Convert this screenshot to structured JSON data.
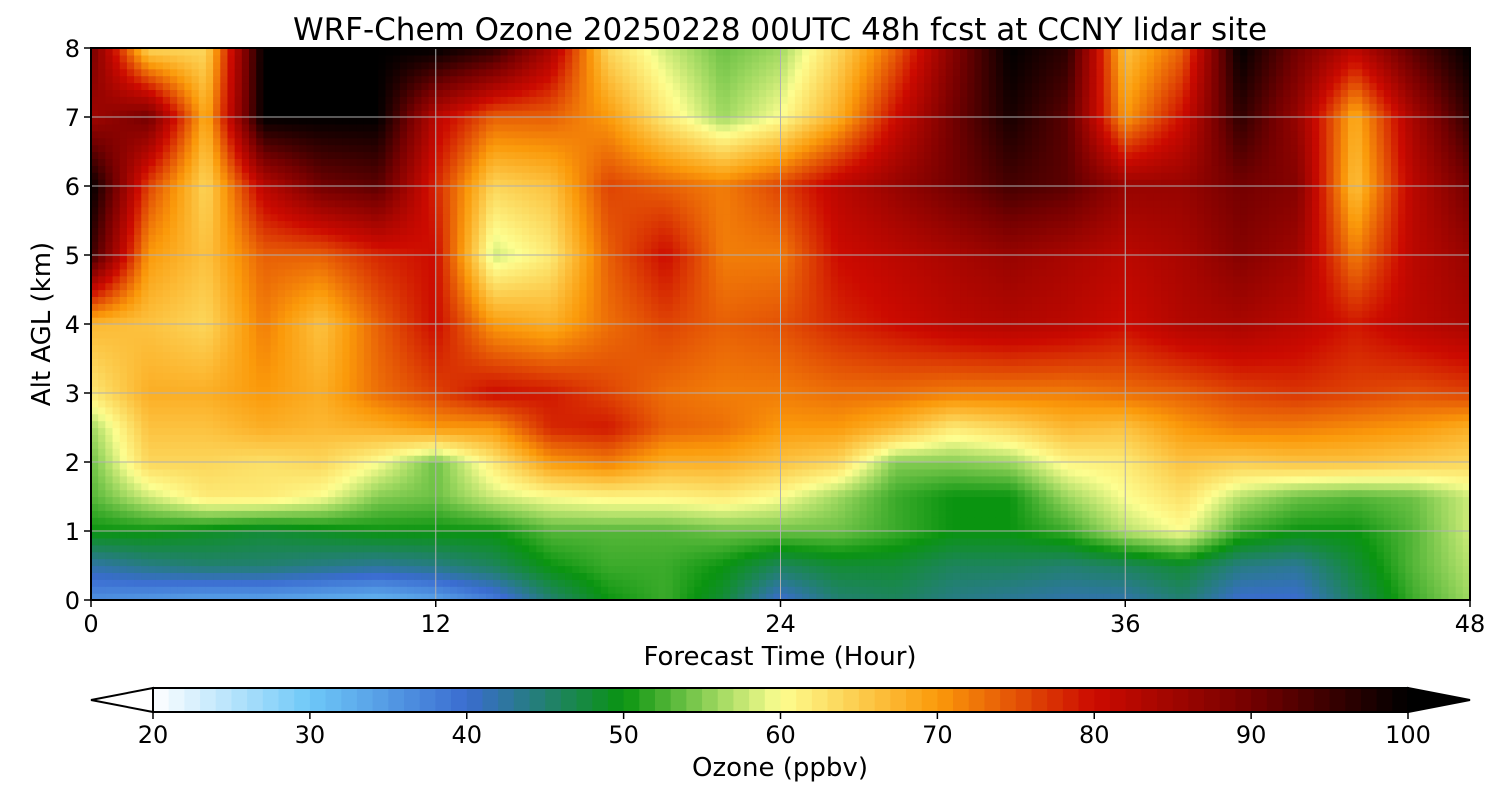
{
  "chart_data": {
    "type": "heatmap",
    "title": "WRF-Chem Ozone  20250228 00UTC 48h fcst at CCNY lidar site",
    "xlabel": "Forecast Time (Hour)",
    "ylabel": "Alt AGL (km)",
    "xlim": [
      0,
      48
    ],
    "ylim": [
      0,
      8
    ],
    "xticks": [
      0,
      12,
      24,
      36,
      48
    ],
    "yticks": [
      0,
      1,
      2,
      3,
      4,
      5,
      6,
      7,
      8
    ],
    "grid": true,
    "x_hours": [
      0,
      2,
      4,
      6,
      8,
      10,
      12,
      14,
      16,
      18,
      20,
      22,
      24,
      26,
      28,
      30,
      32,
      34,
      36,
      38,
      40,
      42,
      44,
      46,
      48
    ],
    "y_km": [
      0,
      0.5,
      1,
      1.5,
      2,
      2.5,
      3,
      4,
      5,
      6,
      7,
      8
    ],
    "z": [
      [
        36,
        35,
        34,
        34,
        33,
        32,
        34,
        38,
        45,
        50,
        52,
        48,
        40,
        45,
        46,
        44,
        43,
        42,
        42,
        45,
        40,
        40,
        46,
        52,
        56
      ],
      [
        42,
        44,
        45,
        45,
        44,
        43,
        44,
        46,
        50,
        52,
        52,
        50,
        46,
        48,
        48,
        46,
        46,
        45,
        46,
        48,
        44,
        43,
        48,
        53,
        57
      ],
      [
        50,
        50,
        49,
        48,
        49,
        50,
        50,
        50,
        53,
        53,
        53,
        54,
        54,
        54,
        52,
        50,
        50,
        52,
        57,
        60,
        52,
        50,
        50,
        53,
        58
      ],
      [
        53,
        58,
        62,
        62,
        60,
        55,
        54,
        58,
        60,
        61,
        61,
        62,
        60,
        56,
        52,
        50,
        50,
        56,
        60,
        63,
        57,
        54,
        53,
        54,
        58
      ],
      [
        54,
        64,
        64,
        63,
        64,
        60,
        54,
        62,
        70,
        72,
        68,
        68,
        66,
        64,
        55,
        55,
        56,
        61,
        62,
        66,
        65,
        66,
        66,
        65,
        64
      ],
      [
        56,
        66,
        66,
        68,
        67,
        68,
        70,
        70,
        78,
        79,
        74,
        73,
        70,
        70,
        67,
        62,
        64,
        67,
        66,
        70,
        72,
        72,
        71,
        70,
        68
      ],
      [
        62,
        68,
        68,
        70,
        68,
        73,
        76,
        80,
        79,
        76,
        73,
        72,
        72,
        73,
        73,
        72,
        72,
        72,
        73,
        74,
        76,
        77,
        76,
        75,
        76
      ],
      [
        67,
        66,
        64,
        72,
        66,
        74,
        80,
        70,
        68,
        73,
        76,
        74,
        75,
        78,
        80,
        82,
        83,
        82,
        80,
        83,
        84,
        82,
        79,
        82,
        84
      ],
      [
        95,
        70,
        66,
        74,
        74,
        78,
        80,
        58,
        62,
        74,
        80,
        72,
        72,
        80,
        82,
        84,
        86,
        84,
        82,
        84,
        88,
        85,
        72,
        82,
        86
      ],
      [
        100,
        76,
        64,
        82,
        90,
        92,
        78,
        64,
        66,
        76,
        74,
        72,
        76,
        82,
        86,
        90,
        94,
        92,
        86,
        86,
        90,
        88,
        66,
        82,
        90
      ],
      [
        85,
        90,
        68,
        100,
        100,
        100,
        82,
        74,
        74,
        70,
        62,
        56,
        60,
        68,
        80,
        90,
        98,
        92,
        70,
        80,
        96,
        86,
        68,
        84,
        96
      ],
      [
        90,
        64,
        64,
        100,
        100,
        100,
        100,
        96,
        84,
        64,
        58,
        54,
        56,
        64,
        74,
        88,
        100,
        96,
        66,
        74,
        100,
        90,
        82,
        92,
        100
      ]
    ],
    "colorbar": {
      "label": "Ozone  (ppbv)",
      "min": 20,
      "max": 100,
      "ticks": [
        20,
        30,
        40,
        50,
        60,
        70,
        80,
        90,
        100
      ],
      "extend": "both",
      "stops": [
        {
          "v": 20,
          "c": "#ffffff"
        },
        {
          "v": 30,
          "c": "#6ec8f8"
        },
        {
          "v": 40,
          "c": "#3a6cd0"
        },
        {
          "v": 50,
          "c": "#0a9410"
        },
        {
          "v": 56,
          "c": "#9ed860"
        },
        {
          "v": 60,
          "c": "#fdfe90"
        },
        {
          "v": 70,
          "c": "#fb9a0a"
        },
        {
          "v": 80,
          "c": "#cc0a00"
        },
        {
          "v": 90,
          "c": "#740000"
        },
        {
          "v": 100,
          "c": "#000000"
        }
      ],
      "under_color": "#ffffff",
      "over_color": "#000000"
    }
  }
}
